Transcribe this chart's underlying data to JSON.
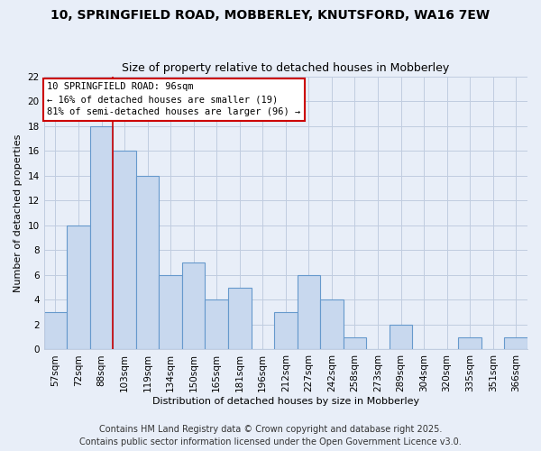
{
  "title": "10, SPRINGFIELD ROAD, MOBBERLEY, KNUTSFORD, WA16 7EW",
  "subtitle": "Size of property relative to detached houses in Mobberley",
  "xlabel": "Distribution of detached houses by size in Mobberley",
  "ylabel": "Number of detached properties",
  "footer_lines": [
    "Contains HM Land Registry data © Crown copyright and database right 2025.",
    "Contains public sector information licensed under the Open Government Licence v3.0."
  ],
  "bin_labels": [
    "57sqm",
    "72sqm",
    "88sqm",
    "103sqm",
    "119sqm",
    "134sqm",
    "150sqm",
    "165sqm",
    "181sqm",
    "196sqm",
    "212sqm",
    "227sqm",
    "242sqm",
    "258sqm",
    "273sqm",
    "289sqm",
    "304sqm",
    "320sqm",
    "335sqm",
    "351sqm",
    "366sqm"
  ],
  "bar_values": [
    3,
    10,
    18,
    16,
    14,
    6,
    7,
    4,
    5,
    0,
    3,
    6,
    4,
    1,
    0,
    2,
    0,
    0,
    1,
    0,
    1
  ],
  "bar_color": "#c8d8ee",
  "bar_edge_color": "#6699cc",
  "vline_color": "#cc0000",
  "vline_x": 2.5,
  "ylim": [
    0,
    22
  ],
  "yticks": [
    0,
    2,
    4,
    6,
    8,
    10,
    12,
    14,
    16,
    18,
    20,
    22
  ],
  "annotation_text_line1": "10 SPRINGFIELD ROAD: 96sqm",
  "annotation_text_line2": "← 16% of detached houses are smaller (19)",
  "annotation_text_line3": "81% of semi-detached houses are larger (96) →",
  "bg_color": "#e8eef8",
  "grid_color": "#c0cce0",
  "title_fontsize": 10,
  "subtitle_fontsize": 9,
  "axis_fontsize": 8,
  "tick_fontsize": 7.5,
  "footer_fontsize": 7
}
